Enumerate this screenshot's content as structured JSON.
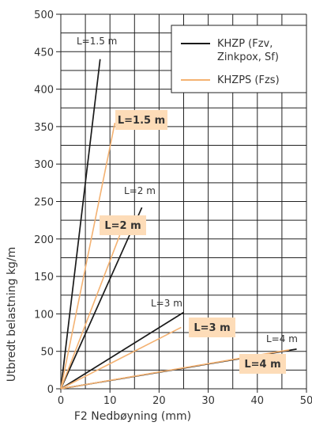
{
  "chart_data": {
    "type": "line",
    "xlabel": "F2 Nedbøyning (mm)",
    "ylabel": "Utbredt belastning kg/m",
    "xlim": [
      0,
      50
    ],
    "ylim": [
      0,
      500
    ],
    "x_ticks": [
      0,
      10,
      20,
      30,
      40,
      50
    ],
    "y_ticks": [
      0,
      50,
      100,
      150,
      200,
      250,
      300,
      350,
      400,
      450,
      500
    ],
    "grid": true,
    "legend": {
      "position": "top-right"
    },
    "series": [
      {
        "name": "KHZP (Fzv, Zinkpox, Sf)",
        "color": "#1a1a1a",
        "lines": [
          {
            "label": "L=1.5 m",
            "x": [
              0,
              8
            ],
            "y": [
              0,
              440
            ]
          },
          {
            "label": "L=2 m",
            "x": [
              0,
              16.5
            ],
            "y": [
              0,
              242
            ]
          },
          {
            "label": "L=3 m",
            "x": [
              0,
              25
            ],
            "y": [
              0,
              102
            ]
          },
          {
            "label": "L=4 m",
            "x": [
              0,
              48
            ],
            "y": [
              0,
              53
            ]
          }
        ]
      },
      {
        "name": "KHZPS (Fzs)",
        "color": "#f4b272",
        "lines": [
          {
            "label": "L=1.5 m",
            "x": [
              0,
              11
            ],
            "y": [
              0,
              355
            ]
          },
          {
            "label": "L=2 m",
            "x": [
              0,
              12
            ],
            "y": [
              0,
              205
            ]
          },
          {
            "label": "L=3 m",
            "x": [
              0,
              24.5
            ],
            "y": [
              0,
              82
            ]
          },
          {
            "label": "L=4 m",
            "x": [
              0,
              46.5
            ],
            "y": [
              0,
              52
            ]
          }
        ]
      }
    ]
  }
}
